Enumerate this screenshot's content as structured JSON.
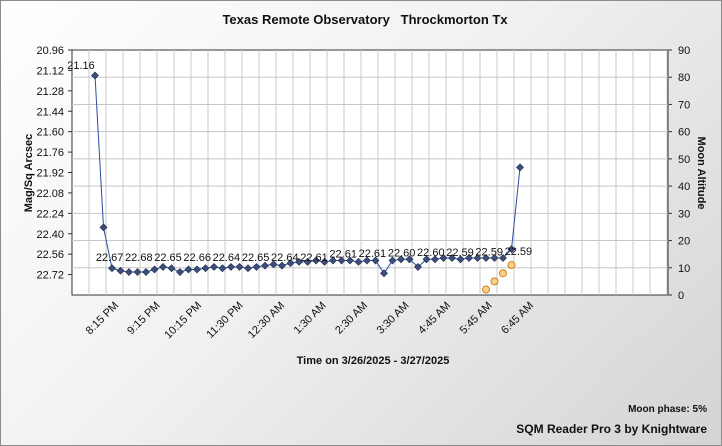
{
  "chart_data": {
    "type": "line",
    "title": "Texas Remote Observatory   Throckmorton Tx",
    "xlabel": "Time on 3/26/2025 - 3/27/2025",
    "ylabel": "Mag/Sq Arcsec",
    "y2label": "Moon Altitude",
    "y_ticks": [
      "20.96",
      "21.12",
      "21.28",
      "21.44",
      "21.60",
      "21.76",
      "21.92",
      "22.08",
      "22.24",
      "22.40",
      "22.56",
      "22.72"
    ],
    "ylim": [
      20.96,
      22.88
    ],
    "y_reversed": true,
    "y2_ticks": [
      "0",
      "10",
      "20",
      "30",
      "40",
      "50",
      "60",
      "70",
      "80",
      "90"
    ],
    "y2lim": [
      0,
      90
    ],
    "x_ticks": [
      "8:15 PM",
      "9:15 PM",
      "10:15 PM",
      "11:30 PM",
      "12:30 AM",
      "1:30 AM",
      "2:30 AM",
      "3:30 AM",
      "4:45 AM",
      "5:45 AM",
      "6:45 AM"
    ],
    "grid": true,
    "series": [
      {
        "name": "",
        "color": "#2c4f9e",
        "marker": "diamond",
        "marker_color": "#3c4f7c",
        "values": [
          21.16,
          22.35,
          22.67,
          22.69,
          22.7,
          22.7,
          22.7,
          22.68,
          22.66,
          22.67,
          22.7,
          22.68,
          22.68,
          22.67,
          22.66,
          22.67,
          22.66,
          22.66,
          22.67,
          22.66,
          22.65,
          22.64,
          22.65,
          22.63,
          22.62,
          22.62,
          22.61,
          22.62,
          22.61,
          22.61,
          22.61,
          22.62,
          22.61,
          22.61,
          22.71,
          22.61,
          22.6,
          22.6,
          22.66,
          22.6,
          22.6,
          22.59,
          22.59,
          22.6,
          22.59,
          22.59,
          22.59,
          22.59,
          22.59,
          22.52,
          21.88
        ]
      },
      {
        "name": "",
        "color": "#d87f1a",
        "marker": "circle",
        "values": [
          null,
          null,
          null,
          null,
          null,
          null,
          null,
          null,
          null,
          null,
          null,
          null,
          null,
          null,
          null,
          null,
          null,
          null,
          null,
          null,
          null,
          null,
          null,
          null,
          null,
          null,
          null,
          null,
          null,
          null,
          null,
          null,
          null,
          null,
          null,
          null,
          null,
          null,
          null,
          null,
          null,
          null,
          null,
          null,
          null,
          null,
          2,
          5,
          8,
          11,
          null
        ]
      }
    ],
    "data_labels": [
      {
        "index": 0,
        "text": "21.16"
      },
      {
        "index": 2,
        "text": "22.67"
      },
      {
        "index": 6,
        "text": "22.68"
      },
      {
        "index": 10,
        "text": "22.65"
      },
      {
        "index": 14,
        "text": "22.66"
      },
      {
        "index": 18,
        "text": "22.64"
      },
      {
        "index": 22,
        "text": "22.65"
      },
      {
        "index": 26,
        "text": "22.64"
      },
      {
        "index": 30,
        "text": "22.61"
      },
      {
        "index": 34,
        "text": "22.61"
      },
      {
        "index": 38,
        "text": "22.61"
      },
      {
        "index": 42,
        "text": "22.60"
      },
      {
        "index": 46,
        "text": "22.60"
      },
      {
        "index": 50,
        "text": "22.59"
      },
      {
        "index": 54,
        "text": "22.59"
      },
      {
        "index": 58,
        "text": "22.59"
      }
    ]
  },
  "footer": {
    "moon_phase": "Moon phase: 5%",
    "credit": "SQM Reader Pro 3 by Knightware"
  }
}
